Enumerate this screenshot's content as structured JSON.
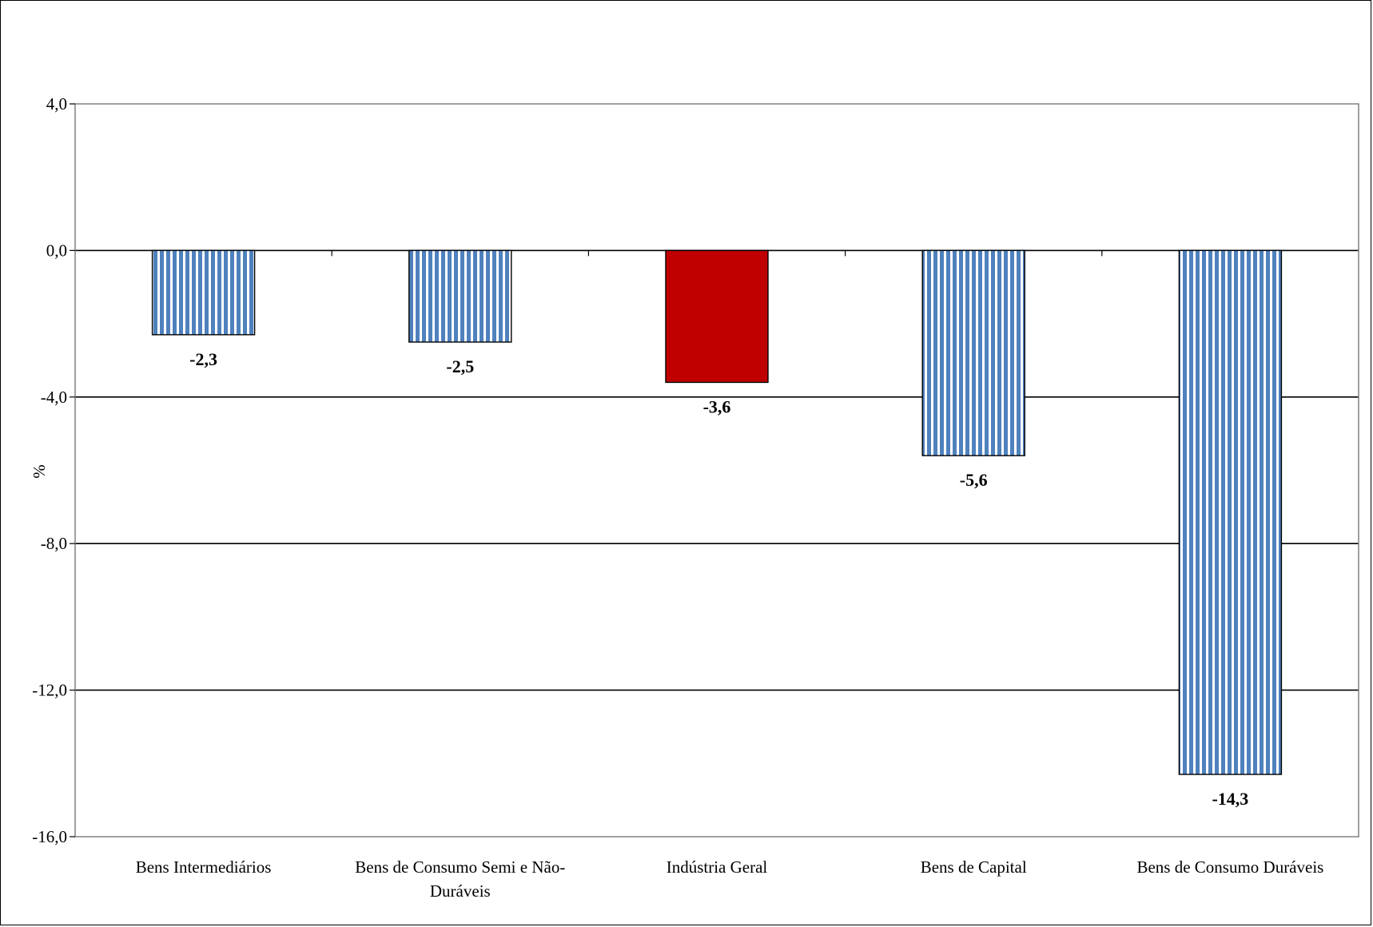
{
  "chart_data": {
    "type": "bar",
    "title": "",
    "xlabel": "",
    "ylabel": "%",
    "ylim": [
      -16,
      4
    ],
    "yticks": [
      4,
      0,
      -4,
      -8,
      -12,
      -16
    ],
    "ytick_labels": [
      "4,0",
      "0,0",
      "-4,0",
      "-8,0",
      "-12,0",
      "-16,0"
    ],
    "grid": true,
    "legend": "none",
    "categories": [
      "Bens Intermediários",
      "Bens de Consumo Semi e Não-Duráveis",
      "Indústria Geral",
      "Bens de Capital",
      "Bens de Consumo Duráveis"
    ],
    "category_lines": [
      [
        "Bens Intermediários"
      ],
      [
        "Bens de Consumo Semi e Não-",
        "Duráveis"
      ],
      [
        "Indústria Geral"
      ],
      [
        "Bens de Capital"
      ],
      [
        "Bens de Consumo Duráveis"
      ]
    ],
    "values": [
      -2.3,
      -2.5,
      -3.6,
      -5.6,
      -14.3
    ],
    "value_labels": [
      "-2,3",
      "-2,5",
      "-3,6",
      "-5,6",
      "-14,3"
    ],
    "bar_styles": [
      "striped",
      "striped",
      "solid",
      "striped",
      "striped"
    ],
    "colors": {
      "stripe": "#4f81bd",
      "stripe_gap": "#ffffff",
      "highlight": "#c00000",
      "gridline": "#000000",
      "border": "#808080"
    }
  }
}
